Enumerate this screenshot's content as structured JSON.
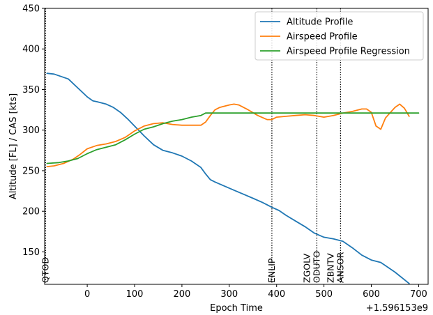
{
  "chart_data": {
    "type": "line",
    "title": "",
    "xlabel": "Epoch Time",
    "ylabel": "Altitude [FL] / CAS [kts]",
    "x_offset_label": "+1.596153e9",
    "xlim": [
      -90,
      720
    ],
    "ylim": [
      110,
      450
    ],
    "x_ticks": [
      0,
      100,
      200,
      300,
      400,
      500,
      600,
      700
    ],
    "y_ticks": [
      150,
      200,
      250,
      300,
      350,
      400,
      450
    ],
    "grid": false,
    "legend_position": "top-right",
    "series": [
      {
        "name": "Altitude Profile",
        "color": "#1f77b4",
        "x": [
          -85,
          -70,
          -40,
          -20,
          0,
          12,
          20,
          40,
          55,
          70,
          85,
          100,
          120,
          140,
          160,
          180,
          200,
          220,
          240,
          250,
          260,
          270,
          290,
          310,
          330,
          350,
          370,
          390,
          405,
          420,
          440,
          460,
          480,
          500,
          520,
          540,
          560,
          580,
          600,
          620,
          650,
          680
        ],
        "y": [
          370,
          369,
          363,
          352,
          341,
          336,
          335,
          332,
          328,
          322,
          314,
          305,
          293,
          282,
          275,
          272,
          268,
          262,
          254,
          246,
          239,
          236,
          231,
          226,
          221,
          216,
          211,
          205,
          201,
          195,
          188,
          181,
          173,
          168,
          166,
          163,
          155,
          146,
          140,
          137,
          125,
          111
        ]
      },
      {
        "name": "Airspeed Profile",
        "color": "#ff7f0e",
        "x": [
          -85,
          -70,
          -50,
          -30,
          -15,
          0,
          20,
          40,
          60,
          80,
          100,
          120,
          140,
          160,
          180,
          200,
          220,
          240,
          250,
          260,
          270,
          280,
          300,
          310,
          320,
          340,
          360,
          380,
          390,
          400,
          420,
          440,
          460,
          480,
          500,
          520,
          540,
          560,
          580,
          590,
          600,
          610,
          620,
          630,
          650,
          660,
          670,
          680
        ],
        "y": [
          255,
          256,
          259,
          264,
          270,
          277,
          281,
          283,
          286,
          291,
          299,
          305,
          308,
          309,
          307,
          306,
          306,
          306,
          310,
          318,
          325,
          328,
          331,
          332,
          331,
          325,
          318,
          313,
          313,
          316,
          317,
          318,
          319,
          318,
          316,
          318,
          321,
          323,
          326,
          326,
          322,
          305,
          301,
          315,
          328,
          332,
          327,
          317
        ]
      },
      {
        "name": "Airspeed Profile Regression",
        "color": "#2ca02c",
        "x": [
          -85,
          -60,
          -40,
          -20,
          0,
          20,
          40,
          60,
          80,
          100,
          120,
          140,
          160,
          180,
          200,
          220,
          240,
          250,
          300,
          400,
          500,
          600,
          700
        ],
        "y": [
          259,
          260,
          262,
          265,
          271,
          276,
          279,
          282,
          288,
          295,
          301,
          304,
          308,
          311,
          313,
          316,
          318,
          321,
          321,
          321,
          321,
          321,
          321
        ]
      }
    ],
    "waypoints": [
      {
        "x": -88,
        "labels": [
          "QTOD"
        ]
      },
      {
        "x": 390,
        "labels": [
          "ENLIP"
        ]
      },
      {
        "x": 485,
        "labels": [
          "ZGOLV",
          "ODUTO"
        ]
      },
      {
        "x": 535,
        "labels": [
          "ZBNTV",
          "ANSOR"
        ]
      }
    ]
  }
}
